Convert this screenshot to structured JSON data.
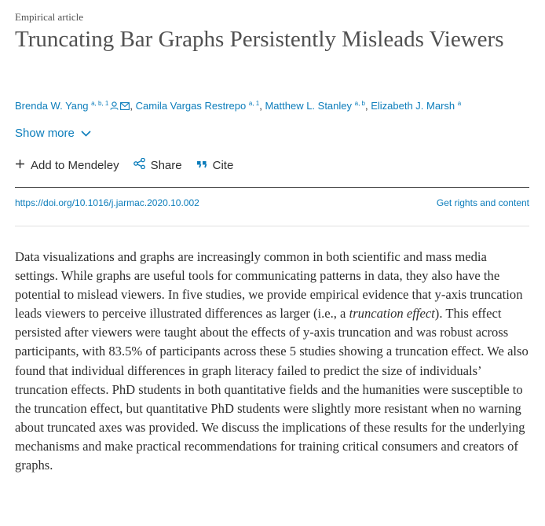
{
  "article_type": "Empirical article",
  "title": "Truncating Bar Graphs Persistently Misleads Viewers",
  "authors": [
    {
      "name": "Brenda W. Yang",
      "sup": "a, b, 1",
      "icons": [
        "person-icon",
        "email-icon"
      ]
    },
    {
      "name": "Camila Vargas Restrepo",
      "sup": "a, 1",
      "icons": []
    },
    {
      "name": "Matthew L. Stanley",
      "sup": "a, b",
      "icons": []
    },
    {
      "name": "Elizabeth J. Marsh",
      "sup": "a",
      "icons": []
    }
  ],
  "show_more": "Show more",
  "actions": {
    "mendeley": "Add to Mendeley",
    "share": "Share",
    "cite": "Cite"
  },
  "doi": "https://doi.org/10.1016/j.jarmac.2020.10.002",
  "rights": "Get rights and content",
  "abstract": {
    "before_italic": "Data visualizations and graphs are increasingly common in both scientific and mass media settings. While graphs are useful tools for communicating patterns in data, they also have the potential to mislead viewers. In five studies, we provide empirical evidence that y-axis truncation leads viewers to perceive illustrated differences as larger (i.e., a ",
    "italic": "truncation effect",
    "after_italic": "). This effect persisted after viewers were taught about the effects of y-axis truncation and was robust across participants, with 83.5% of participants across these 5 studies showing a truncation effect. We also found that individual differences in graph literacy failed to predict the size of individuals’ truncation effects. PhD students in both quantitative fields and the humanities were susceptible to the truncation effect, but quantitative PhD students were slightly more resistant when no warning about truncated axes was provided. We discuss the implications of these results for the underlying mechanisms and make practical recommendations for training critical consumers and creators of graphs."
  },
  "colors": {
    "link": "#0c7dbb",
    "text": "#2e2e2e",
    "heading": "#505050"
  }
}
